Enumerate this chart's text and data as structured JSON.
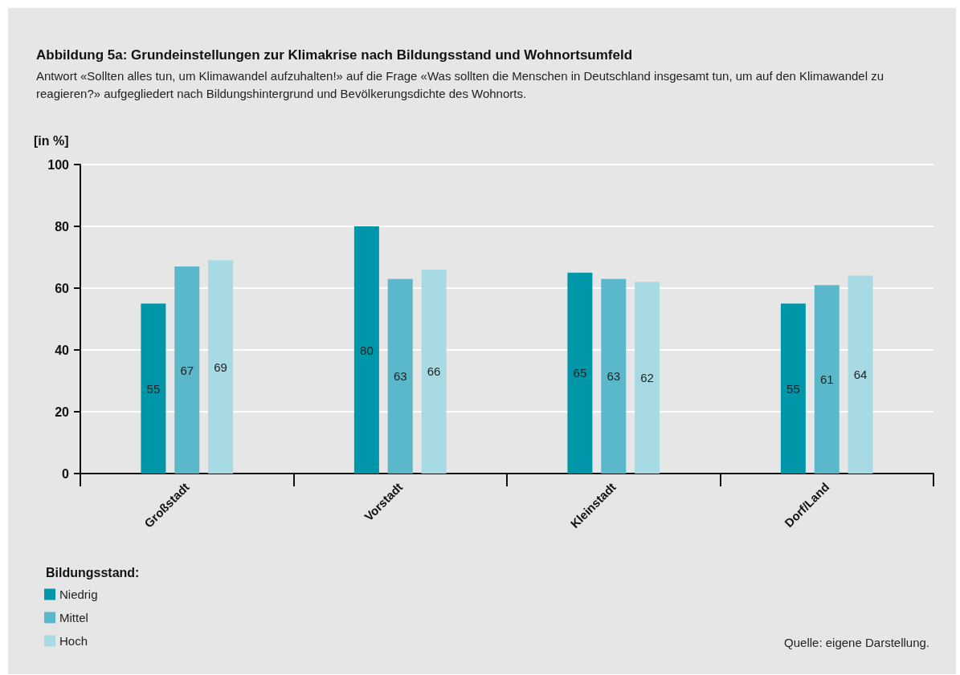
{
  "chart_data": {
    "type": "bar",
    "title": "Abbildung 5a: Grundeinstellungen zur Klimakrise nach Bildungsstand und Wohnortsumfeld",
    "subtitle": "Antwort «Sollten alles tun, um Klimawandel aufzuhalten!» auf die Frage «Was sollten die Menschen in Deutschland insgesamt tun, um auf den Klimawandel zu reagieren?» aufgegliedert nach Bildungshintergrund und Bevölkerungsdichte des Wohnorts.",
    "ylabel": "[in %]",
    "legend_title": "Bildungsstand:",
    "annotations": [
      "Quelle: eigene Darstellung."
    ],
    "categories": [
      "Großstadt",
      "Vorstadt",
      "Kleinstadt",
      "Dorf/Land"
    ],
    "series": [
      {
        "name": "Niedrig",
        "color": "#0096aa",
        "values": [
          55,
          80,
          65,
          55
        ]
      },
      {
        "name": "Mittel",
        "color": "#5ab8ca",
        "values": [
          67,
          63,
          63,
          61
        ]
      },
      {
        "name": "Hoch",
        "color": "#a8dae3",
        "values": [
          69,
          66,
          62,
          64
        ]
      }
    ],
    "ylim": [
      0,
      100
    ],
    "yticks": [
      0,
      20,
      40,
      60,
      80,
      100
    ],
    "grid": "y",
    "legend": "bottom left",
    "data_labels": true
  }
}
